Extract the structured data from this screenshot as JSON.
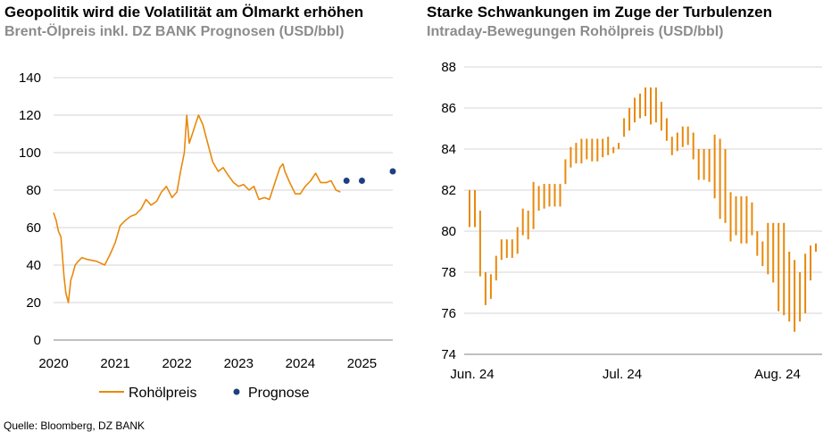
{
  "chart_data": [
    {
      "type": "line",
      "title": "Geopolitik wird die Volatilität am Ölmarkt erhöhen",
      "subtitle": "Brent-Ölpreis inkl. DZ BANK Prognosen (USD/bbl)",
      "xlim": [
        2020,
        2025.5
      ],
      "ylim": [
        0,
        140
      ],
      "x_ticks": [
        "2020",
        "2021",
        "2022",
        "2023",
        "2024",
        "2025"
      ],
      "y_ticks": [
        "0",
        "20",
        "40",
        "60",
        "80",
        "100",
        "120",
        "140"
      ],
      "grid": "horizontal",
      "legend": "bottom",
      "colors": {
        "series": "#e8890c",
        "forecast": "#1f3f7f"
      },
      "series": [
        {
          "name": "Rohölpreis",
          "type": "line",
          "x": [
            2020.0,
            2020.04,
            2020.08,
            2020.12,
            2020.17,
            2020.2,
            2020.24,
            2020.28,
            2020.31,
            2020.35,
            2020.4,
            2020.46,
            2020.55,
            2020.7,
            2020.83,
            2020.92,
            2021.0,
            2021.08,
            2021.17,
            2021.25,
            2021.33,
            2021.42,
            2021.5,
            2021.58,
            2021.67,
            2021.75,
            2021.83,
            2021.92,
            2022.0,
            2022.06,
            2022.12,
            2022.16,
            2022.2,
            2022.25,
            2022.3,
            2022.35,
            2022.42,
            2022.5,
            2022.58,
            2022.67,
            2022.75,
            2022.83,
            2022.92,
            2023.0,
            2023.08,
            2023.17,
            2023.25,
            2023.33,
            2023.42,
            2023.5,
            2023.58,
            2023.67,
            2023.72,
            2023.75,
            2023.83,
            2023.92,
            2024.0,
            2024.08,
            2024.17,
            2024.25,
            2024.33,
            2024.42,
            2024.5,
            2024.58,
            2024.65
          ],
          "y": [
            68,
            64,
            58,
            55,
            34,
            25,
            20,
            32,
            35,
            40,
            42,
            44,
            43,
            42,
            40,
            46,
            52,
            61,
            64,
            66,
            67,
            70,
            75,
            72,
            74,
            79,
            82,
            76,
            79,
            90,
            100,
            120,
            105,
            110,
            115,
            120,
            115,
            105,
            95,
            90,
            92,
            88,
            84,
            82,
            83,
            80,
            82,
            75,
            76,
            75,
            83,
            92,
            94,
            90,
            84,
            78,
            78,
            82,
            85,
            89,
            84,
            84,
            85,
            80,
            79
          ]
        },
        {
          "name": "Prognose",
          "type": "scatter",
          "x": [
            2024.75,
            2025.0,
            2025.5
          ],
          "y": [
            85,
            85,
            90
          ]
        }
      ]
    },
    {
      "type": "range-bar",
      "title": "Starke Schwankungen im Zuge der Turbulenzen",
      "subtitle": "Intraday-Bewegungen Rohölpreis (USD/bbl)",
      "x_ticks": [
        "Jun. 24",
        "Jul. 24",
        "Aug. 24"
      ],
      "ylim": [
        74,
        88
      ],
      "y_ticks": [
        "74",
        "76",
        "78",
        "80",
        "82",
        "84",
        "86",
        "88"
      ],
      "grid": "horizontal",
      "colors": {
        "bars": "#e8890c"
      },
      "series": [
        {
          "low": [
            80.2,
            80.2,
            77.8,
            76.4,
            76.7,
            77.6,
            78.6,
            78.7,
            78.7,
            78.9,
            79.8,
            79.6,
            80.1,
            81.0,
            81.1,
            81.2,
            81.2,
            81.2,
            82.3,
            83.1,
            83.3,
            83.3,
            83.5,
            83.4,
            83.4,
            83.6,
            83.7,
            83.8,
            84.0,
            84.6,
            84.9,
            85.3,
            85.5,
            85.6,
            85.2,
            85.3,
            84.9,
            84.4,
            83.7,
            83.9,
            84.1,
            84.2,
            83.5,
            82.5,
            82.5,
            82.4,
            81.6,
            80.6,
            80.4,
            79.5,
            79.8,
            79.4,
            79.4,
            79.8,
            78.8,
            78.3,
            77.9,
            77.5,
            76.1,
            75.9,
            75.6,
            75.1,
            75.6,
            76.0,
            77.6,
            79.0
          ],
          "high": [
            82.0,
            82.0,
            81.0,
            78.0,
            77.9,
            78.8,
            79.6,
            79.6,
            79.6,
            80.2,
            81.1,
            81.0,
            82.4,
            82.2,
            82.3,
            82.3,
            82.3,
            82.3,
            83.5,
            84.1,
            84.3,
            84.5,
            84.5,
            84.5,
            84.5,
            84.5,
            84.6,
            84.1,
            84.3,
            85.5,
            86.0,
            86.5,
            86.7,
            87.0,
            87.0,
            87.0,
            86.3,
            85.5,
            84.6,
            84.8,
            85.1,
            85.1,
            84.8,
            84.0,
            84.0,
            84.0,
            84.7,
            84.5,
            84.0,
            81.9,
            81.7,
            81.7,
            81.7,
            81.4,
            80.0,
            79.5,
            80.4,
            80.4,
            80.4,
            80.4,
            79.0,
            78.6,
            78.0,
            78.9,
            79.3,
            79.4
          ]
        }
      ]
    }
  ],
  "source": "Quelle: Bloomberg, DZ BANK"
}
